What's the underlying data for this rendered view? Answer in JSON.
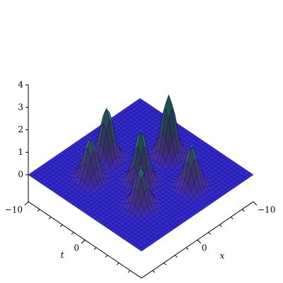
{
  "chart_data": {
    "type": "surface",
    "x_label": "x",
    "t_label": "t",
    "xlim": [
      10,
      -10
    ],
    "tlim": [
      -10,
      10
    ],
    "zlim": [
      -1.2,
      4
    ],
    "xticks": [
      {
        "value": -10,
        "label": "−10"
      },
      0
    ],
    "tticks": [
      {
        "value": -10,
        "label": "−10"
      },
      0
    ],
    "zticks": [
      0,
      1,
      2,
      3,
      4
    ],
    "peaks": {
      "x": [
        -5,
        1,
        1,
        5,
        -3,
        4
      ],
      "t": [
        0,
        -5,
        1,
        -4,
        6,
        4
      ],
      "z": [
        2.7,
        2.3,
        2.3,
        1.8,
        1.8,
        1.7
      ]
    },
    "color": "#3a2ee8",
    "peak_color": "#1fae60",
    "mesh_color": "#14146e"
  }
}
